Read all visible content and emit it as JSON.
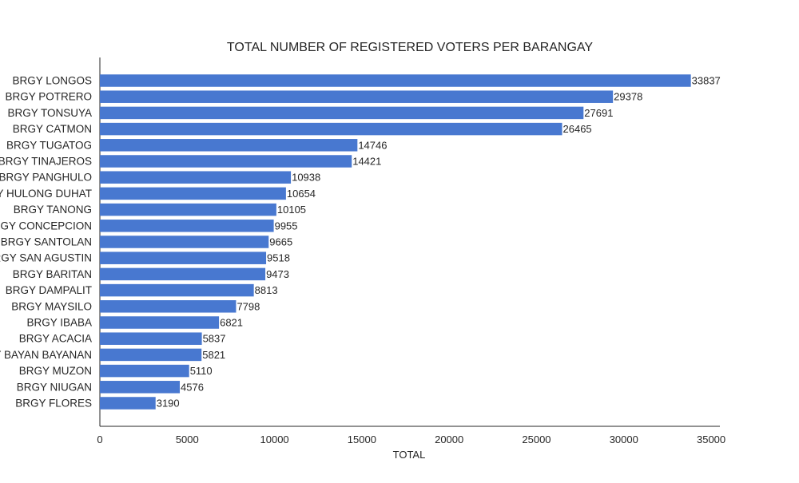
{
  "chart_data": {
    "type": "bar",
    "orientation": "horizontal",
    "title": "TOTAL NUMBER OF REGISTERED VOTERS PER BARANGAY",
    "xlabel": "TOTAL",
    "ylabel": "",
    "xlim": [
      0,
      35500
    ],
    "x_ticks": [
      0,
      5000,
      10000,
      15000,
      20000,
      25000,
      30000,
      35000
    ],
    "grid": false,
    "bar_color": "#4878d0",
    "categories": [
      "BRGY LONGOS",
      "BRGY POTRERO",
      "BRGY TONSUYA",
      "BRGY CATMON",
      "BRGY TUGATOG",
      "BRGY TINAJEROS",
      "BRGY PANGHULO",
      "BRGY HULONG DUHAT",
      "BRGY TANONG",
      "BRGY CONCEPCION",
      "BRGY SANTOLAN",
      "BRGY SAN AGUSTIN",
      "BRGY BARITAN",
      "BRGY DAMPALIT",
      "BRGY MAYSILO",
      "BRGY IBABA",
      "BRGY ACACIA",
      "BRGY BAYAN BAYANAN",
      "BRGY MUZON",
      "BRGY NIUGAN",
      "BRGY FLORES"
    ],
    "values": [
      33837,
      29378,
      27691,
      26465,
      14746,
      14421,
      10938,
      10654,
      10105,
      9955,
      9665,
      9518,
      9473,
      8813,
      7798,
      6821,
      5837,
      5821,
      5110,
      4576,
      3190
    ]
  }
}
